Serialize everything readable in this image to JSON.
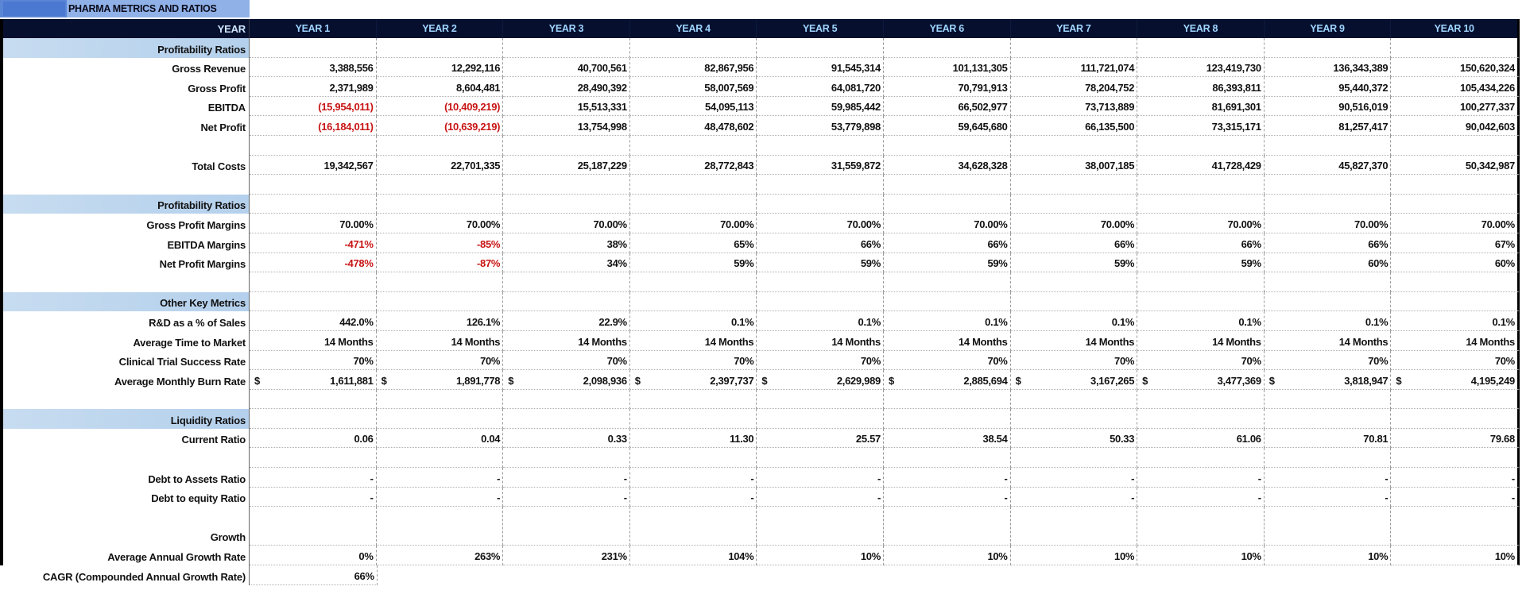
{
  "title": "PHARMA METRICS AND RATIOS",
  "header": {
    "label": "YEAR",
    "years": [
      "YEAR 1",
      "YEAR 2",
      "YEAR 3",
      "YEAR 4",
      "YEAR 5",
      "YEAR 6",
      "YEAR 7",
      "YEAR 8",
      "YEAR 9",
      "YEAR 10"
    ]
  },
  "colors": {
    "header_bg": "#06102e",
    "header_text": "#9fd4ff",
    "section_bg": "#b4d0ec",
    "negative": "#c81414",
    "title_bg": "#8fb1e8"
  },
  "sections": {
    "profitability": {
      "title": "Profitability Ratios",
      "gross_revenue": {
        "label": "Gross Revenue",
        "values": [
          "3,388,556",
          "12,292,116",
          "40,700,561",
          "82,867,956",
          "91,545,314",
          "101,131,305",
          "111,721,074",
          "123,419,730",
          "136,343,389",
          "150,620,324"
        ]
      },
      "gross_profit": {
        "label": "Gross Profit",
        "values": [
          "2,371,989",
          "8,604,481",
          "28,490,392",
          "58,007,569",
          "64,081,720",
          "70,791,913",
          "78,204,752",
          "86,393,811",
          "95,440,372",
          "105,434,226"
        ]
      },
      "ebitda": {
        "label": "EBITDA",
        "values": [
          "(15,954,011)",
          "(10,409,219)",
          "15,513,331",
          "54,095,113",
          "59,985,442",
          "66,502,977",
          "73,713,889",
          "81,691,301",
          "90,516,019",
          "100,277,337"
        ]
      },
      "net_profit": {
        "label": "Net Profit",
        "values": [
          "(16,184,011)",
          "(10,639,219)",
          "13,754,998",
          "48,478,602",
          "53,779,898",
          "59,645,680",
          "66,135,500",
          "73,315,171",
          "81,257,417",
          "90,042,603"
        ]
      },
      "total_costs": {
        "label": "Total Costs",
        "values": [
          "19,342,567",
          "22,701,335",
          "25,187,229",
          "28,772,843",
          "31,559,872",
          "34,628,328",
          "38,007,185",
          "41,728,429",
          "45,827,370",
          "50,342,987"
        ]
      }
    },
    "margins": {
      "title": "Profitability Ratios",
      "gross_profit_margins": {
        "label": "Gross Profit Margins",
        "values": [
          "70.00%",
          "70.00%",
          "70.00%",
          "70.00%",
          "70.00%",
          "70.00%",
          "70.00%",
          "70.00%",
          "70.00%",
          "70.00%"
        ]
      },
      "ebitda_margins": {
        "label": "EBITDA Margins",
        "values": [
          "-471%",
          "-85%",
          "38%",
          "65%",
          "66%",
          "66%",
          "66%",
          "66%",
          "66%",
          "67%"
        ]
      },
      "net_profit_margins": {
        "label": "Net Profit Margins",
        "values": [
          "-478%",
          "-87%",
          "34%",
          "59%",
          "59%",
          "59%",
          "59%",
          "59%",
          "60%",
          "60%"
        ]
      }
    },
    "other": {
      "title": "Other Key  Metrics",
      "rd_pct_sales": {
        "label": "R&D as a % of Sales",
        "values": [
          "442.0%",
          "126.1%",
          "22.9%",
          "0.1%",
          "0.1%",
          "0.1%",
          "0.1%",
          "0.1%",
          "0.1%",
          "0.1%"
        ]
      },
      "avg_time_to_market": {
        "label": "Average Time to Market",
        "values": [
          "14 Months",
          "14 Months",
          "14 Months",
          "14 Months",
          "14 Months",
          "14 Months",
          "14 Months",
          "14 Months",
          "14 Months",
          "14 Months"
        ]
      },
      "clinical_success": {
        "label": "Clinical Trial Success Rate",
        "values": [
          "70%",
          "70%",
          "70%",
          "70%",
          "70%",
          "70%",
          "70%",
          "70%",
          "70%",
          "70%"
        ]
      },
      "burn_rate": {
        "label": "Average Monthly Burn Rate",
        "currency": "$",
        "values": [
          "1,611,881",
          "1,891,778",
          "2,098,936",
          "2,397,737",
          "2,629,989",
          "2,885,694",
          "3,167,265",
          "3,477,369",
          "3,818,947",
          "4,195,249"
        ]
      }
    },
    "liquidity": {
      "title": "Liquidity Ratios",
      "current_ratio": {
        "label": "Current Ratio",
        "values": [
          "0.06",
          "0.04",
          "0.33",
          "11.30",
          "25.57",
          "38.54",
          "50.33",
          "61.06",
          "70.81",
          "79.68"
        ]
      },
      "debt_to_assets": {
        "label": "Debt to Assets Ratio",
        "values": [
          "-",
          "-",
          "-",
          "-",
          "-",
          "-",
          "-",
          "-",
          "-",
          "-"
        ]
      },
      "debt_to_equity": {
        "label": "Debt to equity Ratio",
        "values": [
          "-",
          "-",
          "-",
          "-",
          "-",
          "-",
          "-",
          "-",
          "-",
          "-"
        ]
      }
    },
    "growth": {
      "title": "Growth",
      "aagr": {
        "label": "Average Annual Growth Rate",
        "values": [
          "0%",
          "263%",
          "231%",
          "104%",
          "10%",
          "10%",
          "10%",
          "10%",
          "10%",
          "10%"
        ]
      },
      "cagr": {
        "label": "CAGR (Compounded Annual Growth Rate)",
        "value": "66%"
      }
    }
  }
}
